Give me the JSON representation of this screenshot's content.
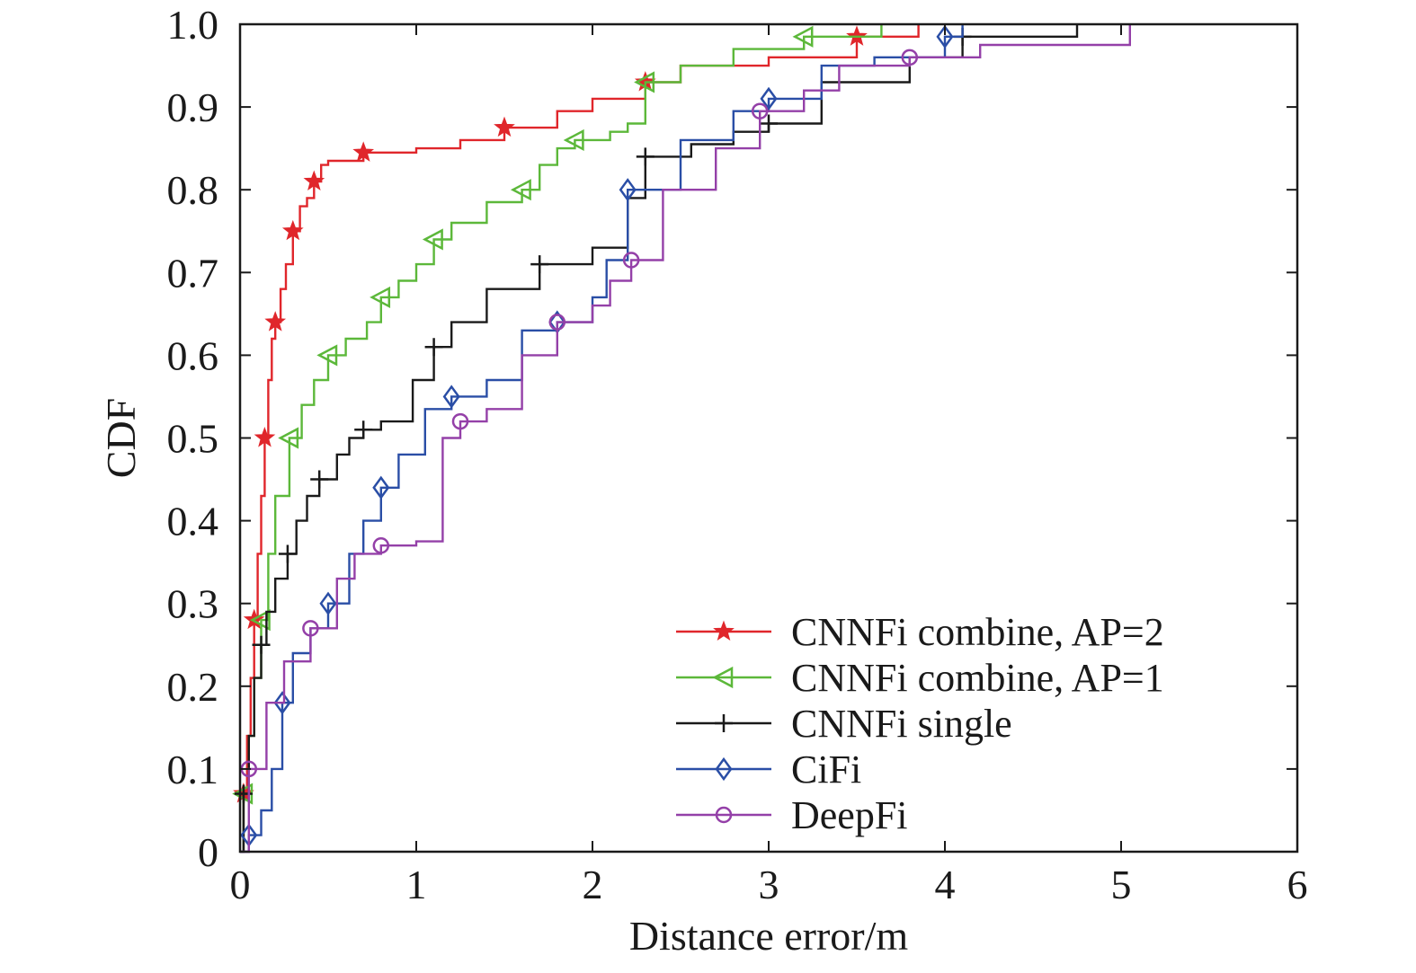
{
  "chart_data": {
    "type": "line",
    "title": "",
    "xlabel": "Distance error/m",
    "ylabel": "CDF",
    "xlim": [
      0,
      6
    ],
    "ylim": [
      0,
      1.0
    ],
    "xticks": [
      0,
      1,
      2,
      3,
      4,
      5,
      6
    ],
    "yticks": [
      0,
      0.1,
      0.2,
      0.3,
      0.4,
      0.5,
      0.6,
      0.7,
      0.8,
      0.9,
      1.0
    ],
    "xtick_labels": [
      "0",
      "1",
      "2",
      "3",
      "4",
      "5",
      "6"
    ],
    "ytick_labels": [
      "0",
      "0.1",
      "0.2",
      "0.3",
      "0.4",
      "0.5",
      "0.6",
      "0.7",
      "0.8",
      "0.9",
      "1.0"
    ],
    "grid": false,
    "legend_position": "bottom-right",
    "series": [
      {
        "name": "CNNFi combine, AP=2",
        "color": "#e0262b",
        "marker": "star",
        "x": [
          0,
          0.02,
          0.04,
          0.06,
          0.08,
          0.1,
          0.12,
          0.14,
          0.16,
          0.18,
          0.2,
          0.23,
          0.26,
          0.3,
          0.34,
          0.38,
          0.42,
          0.46,
          0.5,
          0.7,
          1.0,
          1.25,
          1.5,
          1.8,
          2.0,
          2.3,
          2.5,
          3.0,
          3.5,
          3.85
        ],
        "y": [
          0,
          0.07,
          0.14,
          0.21,
          0.28,
          0.36,
          0.43,
          0.5,
          0.57,
          0.62,
          0.64,
          0.68,
          0.71,
          0.75,
          0.78,
          0.79,
          0.81,
          0.83,
          0.835,
          0.845,
          0.85,
          0.86,
          0.875,
          0.895,
          0.91,
          0.93,
          0.95,
          0.96,
          0.985,
          1.0
        ]
      },
      {
        "name": "CNNFi combine, AP=1",
        "color": "#5cb83a",
        "marker": "triangle-left",
        "x": [
          0,
          0.02,
          0.05,
          0.08,
          0.12,
          0.16,
          0.2,
          0.28,
          0.35,
          0.42,
          0.5,
          0.6,
          0.72,
          0.8,
          0.9,
          1.0,
          1.1,
          1.2,
          1.4,
          1.6,
          1.7,
          1.8,
          1.9,
          2.1,
          2.2,
          2.3,
          2.5,
          2.8,
          3.2,
          3.64
        ],
        "y": [
          0,
          0.07,
          0.14,
          0.21,
          0.28,
          0.36,
          0.43,
          0.5,
          0.54,
          0.57,
          0.6,
          0.62,
          0.64,
          0.67,
          0.69,
          0.71,
          0.74,
          0.76,
          0.785,
          0.8,
          0.83,
          0.85,
          0.86,
          0.87,
          0.88,
          0.93,
          0.95,
          0.97,
          0.985,
          1.0
        ]
      },
      {
        "name": "CNNFi single",
        "color": "#1a1a1a",
        "marker": "plus",
        "x": [
          0,
          0.02,
          0.05,
          0.08,
          0.12,
          0.15,
          0.2,
          0.27,
          0.32,
          0.38,
          0.45,
          0.55,
          0.62,
          0.7,
          0.8,
          0.98,
          1.1,
          1.2,
          1.4,
          1.7,
          2.0,
          2.2,
          2.3,
          2.56,
          2.8,
          3.0,
          3.3,
          3.8,
          4.1,
          4.75
        ],
        "y": [
          0,
          0.07,
          0.14,
          0.21,
          0.25,
          0.29,
          0.33,
          0.36,
          0.4,
          0.43,
          0.45,
          0.48,
          0.5,
          0.51,
          0.52,
          0.57,
          0.61,
          0.64,
          0.68,
          0.71,
          0.73,
          0.79,
          0.84,
          0.855,
          0.87,
          0.88,
          0.93,
          0.96,
          0.985,
          1.0
        ]
      },
      {
        "name": "CiFi",
        "color": "#2a4ea6",
        "marker": "diamond",
        "x": [
          0,
          0.05,
          0.12,
          0.18,
          0.24,
          0.3,
          0.4,
          0.5,
          0.62,
          0.7,
          0.8,
          0.9,
          1.05,
          1.2,
          1.4,
          1.6,
          1.8,
          2.0,
          2.08,
          2.2,
          2.5,
          2.8,
          3.0,
          3.3,
          3.6,
          4.0,
          4.1
        ],
        "y": [
          0,
          0.02,
          0.05,
          0.1,
          0.18,
          0.24,
          0.27,
          0.3,
          0.36,
          0.4,
          0.44,
          0.48,
          0.535,
          0.55,
          0.57,
          0.63,
          0.64,
          0.67,
          0.715,
          0.8,
          0.86,
          0.895,
          0.91,
          0.95,
          0.96,
          0.985,
          1.0
        ]
      },
      {
        "name": "DeepFi",
        "color": "#9440a8",
        "marker": "circle",
        "x": [
          0,
          0.05,
          0.15,
          0.25,
          0.4,
          0.55,
          0.65,
          0.8,
          1.0,
          1.15,
          1.25,
          1.4,
          1.6,
          1.8,
          2.0,
          2.1,
          2.22,
          2.4,
          2.7,
          2.95,
          3.2,
          3.4,
          3.8,
          4.2,
          5.05
        ],
        "y": [
          0,
          0.1,
          0.18,
          0.23,
          0.27,
          0.33,
          0.36,
          0.37,
          0.375,
          0.5,
          0.52,
          0.535,
          0.6,
          0.64,
          0.66,
          0.69,
          0.715,
          0.8,
          0.85,
          0.895,
          0.92,
          0.95,
          0.96,
          0.975,
          1.0
        ]
      }
    ]
  }
}
